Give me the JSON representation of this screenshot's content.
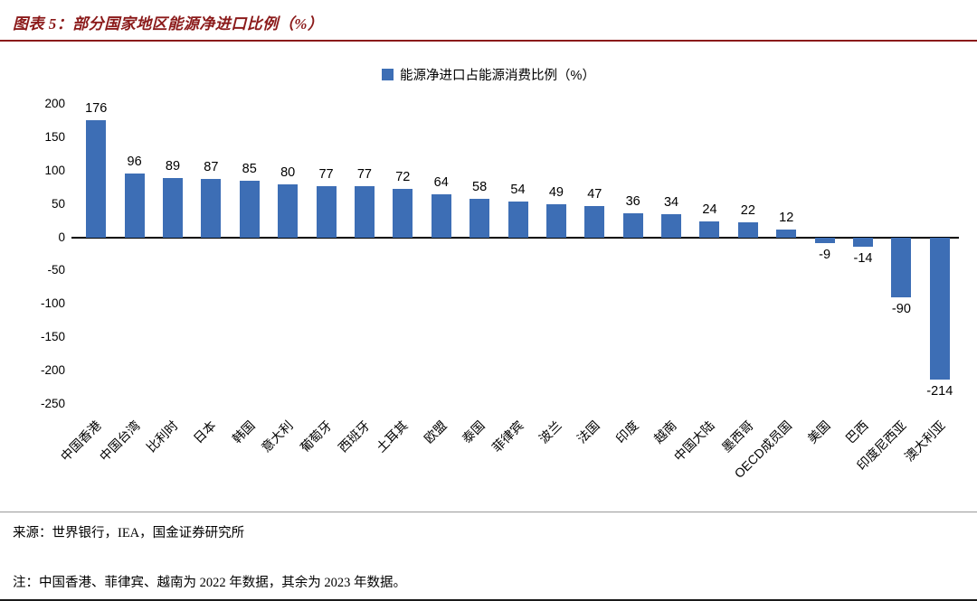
{
  "header": {
    "title": "图表 5：部分国家地区能源净进口比例（%）"
  },
  "legend": {
    "label": "能源净进口占能源消费比例（%）"
  },
  "footer": {
    "source": "来源：世界银行，IEA，国金证券研究所",
    "note": "注：中国香港、菲律宾、越南为 2022 年数据，其余为 2023 年数据。"
  },
  "colors": {
    "bar": "#3D6EB5",
    "title_red": "#8B1A1A"
  },
  "chart_data": {
    "type": "bar",
    "title": "能源净进口占能源消费比例（%）",
    "categories": [
      "中国香港",
      "中国台湾",
      "比利时",
      "日本",
      "韩国",
      "意大利",
      "葡萄牙",
      "西班牙",
      "土耳其",
      "欧盟",
      "泰国",
      "菲律宾",
      "波兰",
      "法国",
      "印度",
      "越南",
      "中国大陆",
      "墨西哥",
      "OECD成员国",
      "美国",
      "巴西",
      "印度尼西亚",
      "澳大利亚"
    ],
    "values": [
      176,
      96,
      89,
      87,
      85,
      80,
      77,
      77,
      72,
      64,
      58,
      54,
      49,
      47,
      36,
      34,
      24,
      22,
      12,
      -9,
      -14,
      -90,
      -214
    ],
    "xlabel": "",
    "ylabel": "",
    "ylim": [
      -250,
      200
    ],
    "yticks": [
      200,
      150,
      100,
      50,
      0,
      -50,
      -100,
      -150,
      -200,
      -250
    ],
    "grid": false,
    "legend_position": "top-center",
    "data_labels": true
  }
}
